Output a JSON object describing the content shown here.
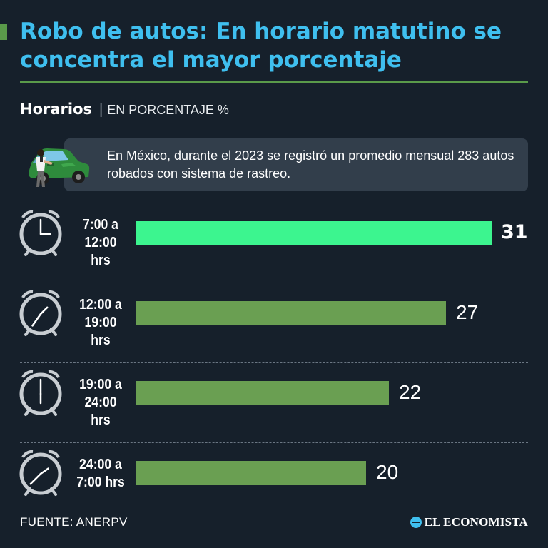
{
  "header": {
    "title": "Robo de autos: En horario matutino se concentra el mayor porcentaje",
    "subtitle_bold": "Horarios",
    "subtitle_sep": "|",
    "subtitle_unit": "EN PORCENTAJE %"
  },
  "note": {
    "text": "En México, durante el 2023 se registró un promedio mensual 283 autos robados con sistema de rastreo."
  },
  "chart_data": {
    "type": "bar",
    "orientation": "horizontal",
    "categories": [
      "7:00 a 12:00 hrs",
      "12:00 a 19:00 hrs",
      "19:00 a 24:00 hrs",
      "24:00 a 7:00 hrs"
    ],
    "category_lines": [
      [
        "7:00 a",
        "12:00 hrs"
      ],
      [
        "12:00 a",
        "19:00 hrs"
      ],
      [
        "19:00 a",
        "24:00 hrs"
      ],
      [
        "24:00 a",
        "7:00 hrs"
      ]
    ],
    "clock_icons": [
      "clock-icon",
      "clock-icon",
      "clock-icon",
      "clock-icon"
    ],
    "values": [
      31,
      27,
      22,
      20
    ],
    "xlim": [
      0,
      31
    ],
    "grid": false,
    "colors": {
      "highlight": "#3cf58f",
      "default": "#6a9f52"
    },
    "highlight_index": 0
  },
  "footer": {
    "source": "FUENTE: ANERPV",
    "logo": "EL ECONOMISTA"
  },
  "colors": {
    "background": "#16202b",
    "title": "#3fbfef",
    "accent": "#5a9a4a",
    "note_box": "#323e4b"
  }
}
